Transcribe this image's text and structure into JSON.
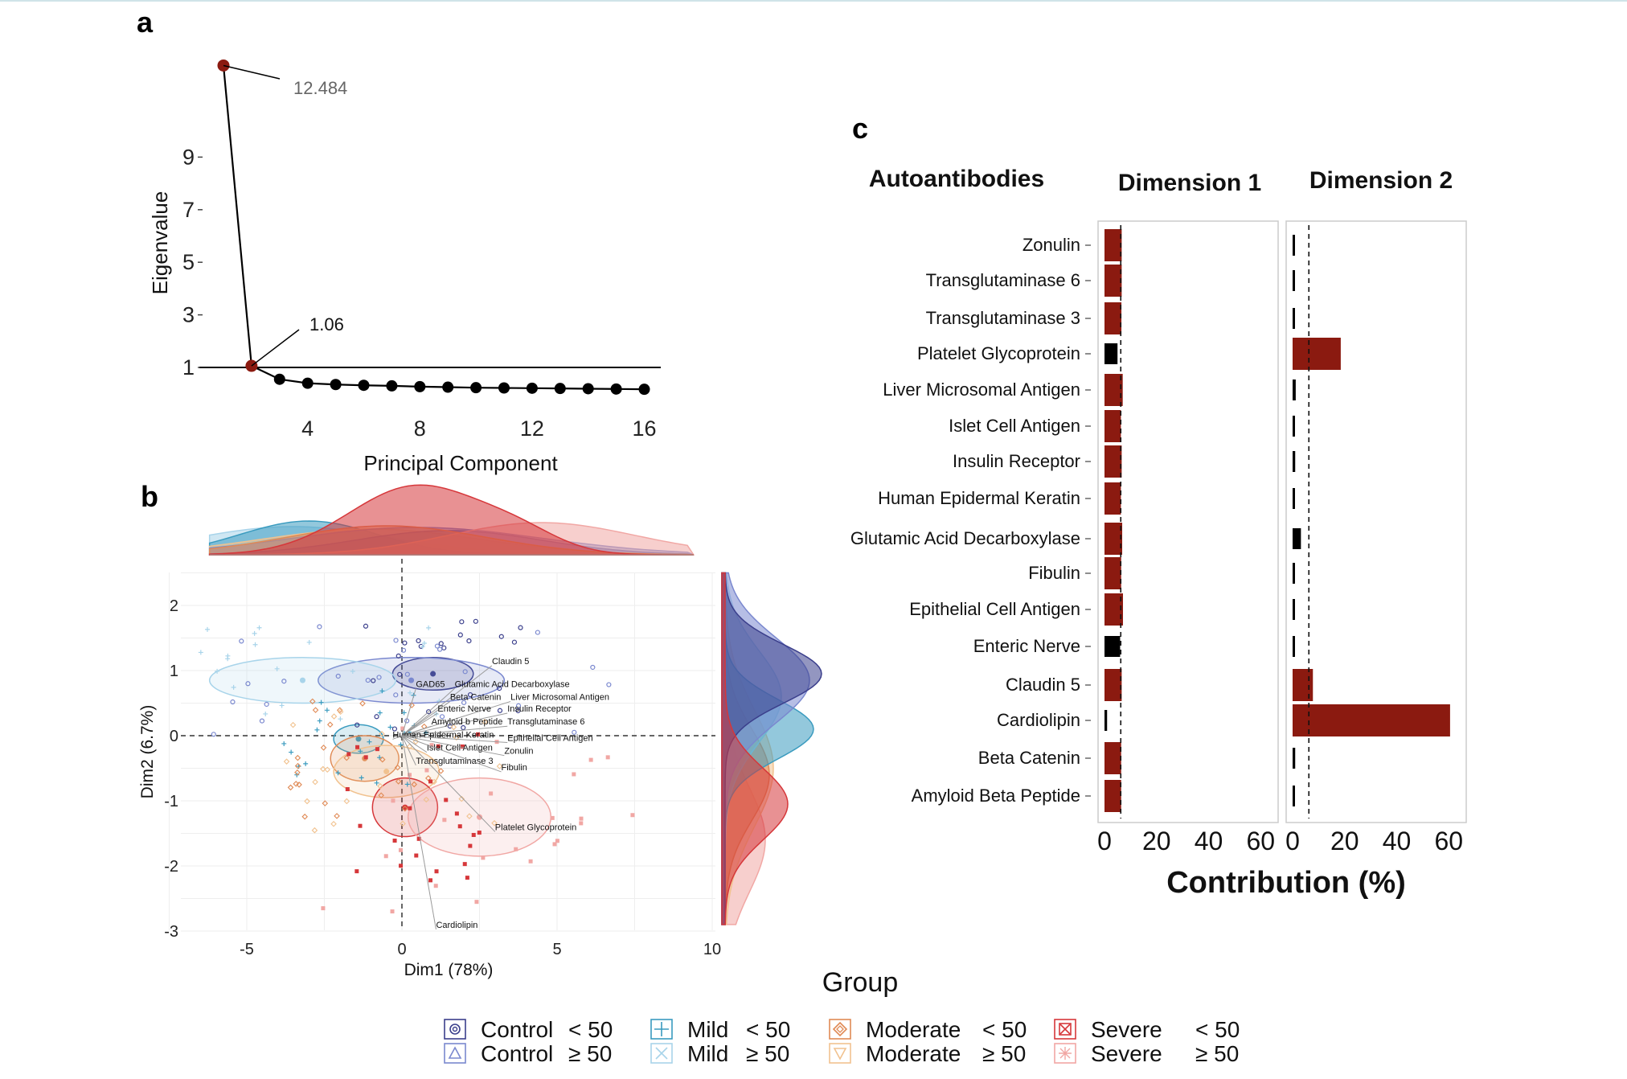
{
  "panels": {
    "a": "a",
    "b": "b",
    "c": "c"
  },
  "chart_data": [
    {
      "panel": "a",
      "type": "line",
      "xlabel": "Principal Component",
      "ylabel": "Eigenvalue",
      "xticks": [
        "4",
        "8",
        "12",
        "16"
      ],
      "yticks": [
        "1",
        "3",
        "5",
        "7",
        "9"
      ],
      "reference_line_y": 1,
      "x": [
        1,
        2,
        3,
        4,
        5,
        6,
        7,
        8,
        9,
        10,
        11,
        12,
        13,
        14,
        15,
        16
      ],
      "values": [
        12.484,
        1.06,
        0.55,
        0.4,
        0.35,
        0.32,
        0.3,
        0.27,
        0.25,
        0.23,
        0.22,
        0.21,
        0.2,
        0.19,
        0.18,
        0.17
      ],
      "highlight_color": "#8b1a10",
      "point_color": "#000000",
      "annotations": [
        {
          "x": 1,
          "label": "12.484"
        },
        {
          "x": 2,
          "label": "1.06"
        }
      ]
    },
    {
      "panel": "b",
      "type": "scatter",
      "xlabel": "Dim1 (78%)",
      "ylabel": "Dim2 (6.7%)",
      "xticks": [
        "-5",
        "0",
        "5",
        "10"
      ],
      "yticks": [
        "2",
        "1",
        "0",
        "-1",
        "-2",
        "-3"
      ],
      "xlim": [
        -7,
        10
      ],
      "ylim": [
        -3.2,
        2.6
      ],
      "groups": [
        {
          "name": "Control < 50",
          "color": "#3b3f8c",
          "cx": 1.0,
          "cy": 0.95,
          "rx": 1.3,
          "ry": 0.25
        },
        {
          "name": "Control ≥ 50",
          "color": "#7a88cf",
          "cx": 0.3,
          "cy": 0.85,
          "rx": 3.0,
          "ry": 0.35
        },
        {
          "name": "Mild < 50",
          "color": "#3a9bbf",
          "cx": -1.4,
          "cy": -0.05,
          "rx": 0.8,
          "ry": 0.22
        },
        {
          "name": "Mild ≥ 50",
          "color": "#a8d4ea",
          "cx": -3.2,
          "cy": 0.85,
          "rx": 3.0,
          "ry": 0.35
        },
        {
          "name": "Moderate < 50",
          "color": "#e08a55",
          "cx": -1.2,
          "cy": -0.35,
          "rx": 1.1,
          "ry": 0.35
        },
        {
          "name": "Moderate ≥ 50",
          "color": "#f1c28f",
          "cx": -0.5,
          "cy": -0.55,
          "rx": 1.7,
          "ry": 0.4
        },
        {
          "name": "Severe < 50",
          "color": "#d6373a",
          "cx": 0.1,
          "cy": -1.1,
          "rx": 1.05,
          "ry": 0.45
        },
        {
          "name": "Severe ≥ 50",
          "color": "#f1a7a4",
          "cx": 2.5,
          "cy": -1.25,
          "rx": 2.3,
          "ry": 0.6
        }
      ],
      "variables": [
        {
          "label": "Claudin 5",
          "x": 2.9,
          "y": 1.1
        },
        {
          "label": "GAD65",
          "x": 0.45,
          "y": 0.75
        },
        {
          "label": "Glutamic Acid Decarboxylase",
          "x": 1.7,
          "y": 0.75
        },
        {
          "label": "Beta Catenin",
          "x": 1.55,
          "y": 0.55
        },
        {
          "label": "Liver Microsomal Antigen",
          "x": 3.5,
          "y": 0.55
        },
        {
          "label": "Enteric Nerve",
          "x": 1.15,
          "y": 0.37
        },
        {
          "label": "Insulin Receptor",
          "x": 3.4,
          "y": 0.37
        },
        {
          "label": "Amyloid b Peptide",
          "x": 0.95,
          "y": 0.17
        },
        {
          "label": "Transglutaminase 6",
          "x": 3.4,
          "y": 0.17
        },
        {
          "label": "Human Epidermal Keratin",
          "x": -0.3,
          "y": -0.03
        },
        {
          "label": "Epithelial Cell Antigen",
          "x": 3.4,
          "y": -0.08
        },
        {
          "label": "Islet Cell Antigen",
          "x": 0.8,
          "y": -0.23
        },
        {
          "label": "Zonulin",
          "x": 3.3,
          "y": -0.28
        },
        {
          "label": "Transglutaminase 3",
          "x": 0.45,
          "y": -0.43
        },
        {
          "label": "Fibulin",
          "x": 3.2,
          "y": -0.53
        },
        {
          "label": "Platelet Glycoprotein",
          "x": 3.0,
          "y": -1.45
        },
        {
          "label": "Cardiolipin",
          "x": 1.1,
          "y": -2.95
        }
      ]
    },
    {
      "panel": "c",
      "type": "bar",
      "orientation": "horizontal",
      "row_header": "Autoantibodies",
      "xlabel": "Contribution (%)",
      "xticks": [
        "0",
        "20",
        "40",
        "60"
      ],
      "xlim": [
        0,
        63
      ],
      "reference_line": 6.25,
      "highlight_color": "#8b1a10",
      "low_color": "#000000",
      "categories": [
        "Zonulin",
        "Transglutaminase 6",
        "Transglutaminase 3",
        "Platelet Glycoprotein",
        "Liver Microsomal Antigen",
        "Islet Cell Antigen",
        "Insulin Receptor",
        "Human Epidermal Keratin",
        "Glutamic Acid Decarboxylase",
        "Fibulin",
        "Epithelial Cell Antigen",
        "Enteric Nerve",
        "Claudin 5",
        "Cardiolipin",
        "Beta Catenin",
        "Amyloid Beta Peptide"
      ],
      "series": [
        {
          "name": "Dimension 1",
          "values": [
            6.6,
            6.6,
            6.5,
            5.0,
            7.0,
            6.3,
            6.6,
            6.3,
            6.8,
            6.4,
            7.1,
            6.0,
            6.6,
            1.0,
            6.4,
            6.4
          ]
        },
        {
          "name": "Dimension 2",
          "values": [
            0.3,
            0.6,
            0.4,
            18.5,
            1.2,
            0.3,
            1.0,
            0.2,
            3.2,
            0.9,
            0.1,
            0.7,
            7.8,
            60.5,
            1.0,
            0.6
          ]
        }
      ]
    }
  ],
  "legend": {
    "title": "Group",
    "items": [
      {
        "group": "Control",
        "age": "< 50",
        "color": "#3b3f8c",
        "icon": "double-circle-icon"
      },
      {
        "group": "Control",
        "age": "≥ 50",
        "color": "#7a88cf",
        "icon": "triangle-icon"
      },
      {
        "group": "Mild",
        "age": "< 50",
        "color": "#3a9bbf",
        "icon": "plus-icon"
      },
      {
        "group": "Mild",
        "age": "≥ 50",
        "color": "#a8d4ea",
        "icon": "cross-icon"
      },
      {
        "group": "Moderate",
        "age": "< 50",
        "color": "#e08a55",
        "icon": "diamond-icon"
      },
      {
        "group": "Moderate",
        "age": "≥ 50",
        "color": "#f1c28f",
        "icon": "down-triangle-icon"
      },
      {
        "group": "Severe",
        "age": "< 50",
        "color": "#d6373a",
        "icon": "boxed-x-icon"
      },
      {
        "group": "Severe",
        "age": "≥ 50",
        "color": "#f1a7a4",
        "icon": "asterisk-icon"
      }
    ]
  }
}
